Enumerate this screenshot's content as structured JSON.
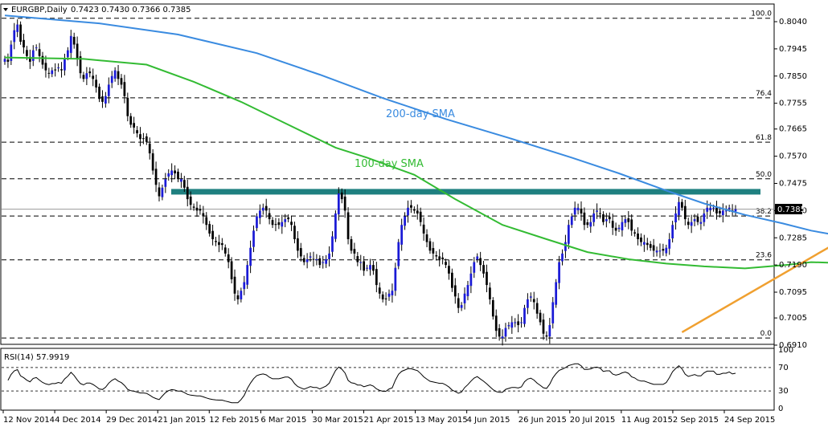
{
  "header": {
    "symbol_label": "EURGBP,Daily",
    "ohlc_label": "0.7423 0.7430 0.7366 0.7385"
  },
  "chart_data": {
    "type": "candlestick",
    "price_axis": {
      "ticks": [
        "0.8040",
        "0.7945",
        "0.7850",
        "0.7755",
        "0.7665",
        "0.7570",
        "0.7475",
        "0.7380",
        "0.7285",
        "0.7190",
        "0.7095",
        "0.7005",
        "0.6910"
      ]
    },
    "last_price": "0.7385",
    "x_labels": [
      "12 Nov 2014",
      "4 Dec 2014",
      "29 Dec 2014",
      "21 Jan 2015",
      "12 Feb 2015",
      "6 Mar 2015",
      "30 Mar 2015",
      "21 Apr 2015",
      "13 May 2015",
      "4 Jun 2015",
      "26 Jun 2015",
      "20 Jul 2015",
      "11 Aug 2015",
      "2 Sep 2015",
      "24 Sep 2015"
    ],
    "fib_levels": [
      {
        "label": "100.0",
        "price": 0.8052
      },
      {
        "label": "76.4",
        "price": 0.7774
      },
      {
        "label": "61.8",
        "price": 0.7619
      },
      {
        "label": "50.0",
        "price": 0.7491
      },
      {
        "label": "38.2",
        "price": 0.7361
      },
      {
        "label": "23.6",
        "price": 0.7208
      },
      {
        "label": "0.0",
        "price": 0.6935
      }
    ],
    "annotations": [
      {
        "text": "200-day SMA",
        "color": "#3a8be0"
      },
      {
        "text": "100-day SMA",
        "color": "#33bb33"
      }
    ],
    "resistance_zone": {
      "from": 0.7438,
      "to": 0.745,
      "color": "#1f8080"
    },
    "sma200": [
      {
        "bar": 0,
        "price": 0.8062
      },
      {
        "bar": 30,
        "price": 0.8034
      },
      {
        "bar": 55,
        "price": 0.7995
      },
      {
        "bar": 80,
        "price": 0.793
      },
      {
        "bar": 100,
        "price": 0.7855
      },
      {
        "bar": 120,
        "price": 0.7773
      },
      {
        "bar": 140,
        "price": 0.77
      },
      {
        "bar": 160,
        "price": 0.7634
      },
      {
        "bar": 180,
        "price": 0.7565
      },
      {
        "bar": 195,
        "price": 0.751
      },
      {
        "bar": 210,
        "price": 0.745
      },
      {
        "bar": 222,
        "price": 0.7405
      },
      {
        "bar": 235,
        "price": 0.7365
      },
      {
        "bar": 247,
        "price": 0.7335
      },
      {
        "bar": 256,
        "price": 0.731
      },
      {
        "bar": 262,
        "price": 0.7298
      }
    ],
    "sma100": [
      {
        "bar": 0,
        "price": 0.7915
      },
      {
        "bar": 25,
        "price": 0.791
      },
      {
        "bar": 45,
        "price": 0.789
      },
      {
        "bar": 60,
        "price": 0.783
      },
      {
        "bar": 75,
        "price": 0.776
      },
      {
        "bar": 90,
        "price": 0.768
      },
      {
        "bar": 105,
        "price": 0.76
      },
      {
        "bar": 115,
        "price": 0.7565
      },
      {
        "bar": 130,
        "price": 0.7505
      },
      {
        "bar": 143,
        "price": 0.742
      },
      {
        "bar": 158,
        "price": 0.733
      },
      {
        "bar": 172,
        "price": 0.728
      },
      {
        "bar": 185,
        "price": 0.7235
      },
      {
        "bar": 198,
        "price": 0.721
      },
      {
        "bar": 210,
        "price": 0.7195
      },
      {
        "bar": 222,
        "price": 0.7185
      },
      {
        "bar": 235,
        "price": 0.7178
      },
      {
        "bar": 248,
        "price": 0.719
      },
      {
        "bar": 256,
        "price": 0.72
      },
      {
        "bar": 262,
        "price": 0.7198
      }
    ],
    "trendline": [
      {
        "bar": 215,
        "price": 0.6955
      },
      {
        "bar": 270,
        "price": 0.7305
      }
    ],
    "closes": [
      0.791,
      0.79,
      0.796,
      0.801,
      0.803,
      0.797,
      0.795,
      0.792,
      0.79,
      0.794,
      0.795,
      0.792,
      0.789,
      0.787,
      0.786,
      0.787,
      0.787,
      0.788,
      0.787,
      0.791,
      0.794,
      0.799,
      0.796,
      0.791,
      0.786,
      0.784,
      0.786,
      0.786,
      0.784,
      0.781,
      0.777,
      0.776,
      0.778,
      0.782,
      0.785,
      0.787,
      0.784,
      0.782,
      0.778,
      0.771,
      0.768,
      0.767,
      0.765,
      0.763,
      0.763,
      0.762,
      0.758,
      0.752,
      0.747,
      0.743,
      0.746,
      0.749,
      0.751,
      0.752,
      0.751,
      0.749,
      0.749,
      0.746,
      0.742,
      0.74,
      0.739,
      0.738,
      0.738,
      0.736,
      0.733,
      0.73,
      0.728,
      0.727,
      0.726,
      0.726,
      0.723,
      0.72,
      0.714,
      0.709,
      0.707,
      0.71,
      0.713,
      0.719,
      0.725,
      0.731,
      0.736,
      0.738,
      0.739,
      0.738,
      0.735,
      0.733,
      0.733,
      0.733,
      0.734,
      0.735,
      0.735,
      0.733,
      0.728,
      0.724,
      0.722,
      0.72,
      0.721,
      0.722,
      0.721,
      0.721,
      0.719,
      0.72,
      0.721,
      0.723,
      0.729,
      0.737,
      0.744,
      0.742,
      0.738,
      0.728,
      0.724,
      0.723,
      0.72,
      0.72,
      0.717,
      0.718,
      0.719,
      0.717,
      0.712,
      0.709,
      0.707,
      0.707,
      0.709,
      0.71,
      0.718,
      0.727,
      0.733,
      0.736,
      0.739,
      0.739,
      0.738,
      0.737,
      0.734,
      0.73,
      0.727,
      0.724,
      0.723,
      0.722,
      0.721,
      0.721,
      0.719,
      0.716,
      0.711,
      0.708,
      0.704,
      0.705,
      0.709,
      0.712,
      0.716,
      0.72,
      0.722,
      0.719,
      0.716,
      0.712,
      0.707,
      0.701,
      0.696,
      0.694,
      0.694,
      0.697,
      0.698,
      0.699,
      0.699,
      0.698,
      0.699,
      0.704,
      0.707,
      0.708,
      0.706,
      0.702,
      0.699,
      0.695,
      0.694,
      0.698,
      0.706,
      0.713,
      0.72,
      0.723,
      0.727,
      0.733,
      0.736,
      0.739,
      0.739,
      0.737,
      0.733,
      0.733,
      0.734,
      0.737,
      0.738,
      0.737,
      0.734,
      0.735,
      0.735,
      0.732,
      0.731,
      0.732,
      0.734,
      0.735,
      0.734,
      0.731,
      0.73,
      0.728,
      0.727,
      0.727,
      0.726,
      0.725,
      0.724,
      0.724,
      0.724,
      0.724,
      0.725,
      0.728,
      0.733,
      0.737,
      0.741,
      0.739,
      0.735,
      0.733,
      0.734,
      0.735,
      0.734,
      0.734,
      0.737,
      0.739,
      0.739,
      0.739,
      0.737,
      0.737,
      0.738,
      0.738,
      0.739,
      0.738,
      0.7385
    ],
    "rsi_label": "RSI(14) 57.9919",
    "rsi_ticks": [
      "100",
      "70",
      "30",
      "0"
    ]
  }
}
